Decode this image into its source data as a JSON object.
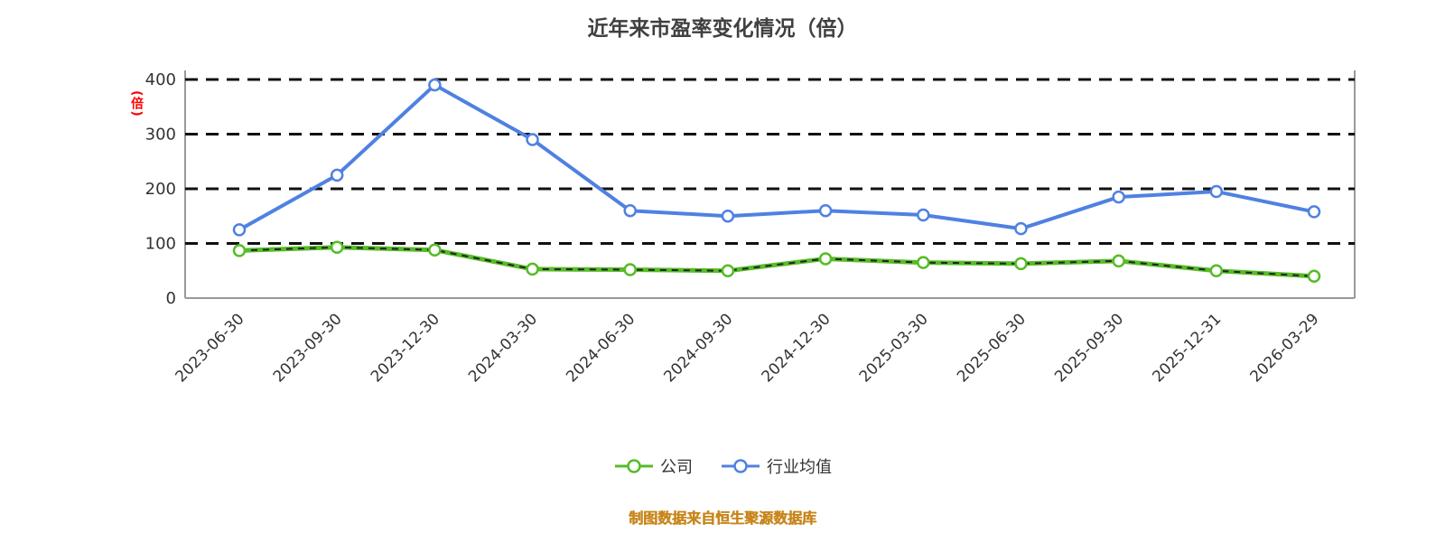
{
  "title": "近年来市盈率变化情况（倍）",
  "y_axis_label": "(倍)",
  "footer": {
    "source": "制图数据来自恒生聚源数据库"
  },
  "legend": {
    "items": [
      {
        "label": "公司"
      },
      {
        "label": "行业均值"
      }
    ]
  },
  "colors": {
    "company": "#56bc27",
    "industry": "#4f81e2",
    "company_dash_overlay": "#222222",
    "grid": "#111111",
    "axis": "#999999",
    "tick_text": "#333333",
    "title_text": "#404040",
    "ylabel_red": "#ff0000",
    "footer_orange": "#c8861c"
  },
  "chart_data": {
    "type": "line",
    "x": [
      "2023-06-30",
      "2023-09-30",
      "2023-12-30",
      "2024-03-30",
      "2024-06-30",
      "2024-09-30",
      "2024-12-30",
      "2025-03-30",
      "2025-06-30",
      "2025-09-30",
      "2025-12-31",
      "2026-03-29"
    ],
    "series": [
      {
        "name": "公司",
        "color_key": "company",
        "values": [
          87,
          93,
          88,
          53,
          52,
          50,
          72,
          65,
          63,
          68,
          50,
          40
        ]
      },
      {
        "name": "行业均值",
        "color_key": "industry",
        "values": [
          125,
          225,
          390,
          290,
          160,
          150,
          160,
          152,
          127,
          185,
          195,
          158
        ]
      }
    ],
    "title": "近年来市盈率变化情况（倍）",
    "xlabel": "",
    "ylabel": "(倍)",
    "ylim": [
      0,
      400
    ],
    "yticks": [
      0,
      100,
      200,
      300,
      400
    ],
    "grid": "horizontal-dashed",
    "legend_position": "bottom"
  }
}
